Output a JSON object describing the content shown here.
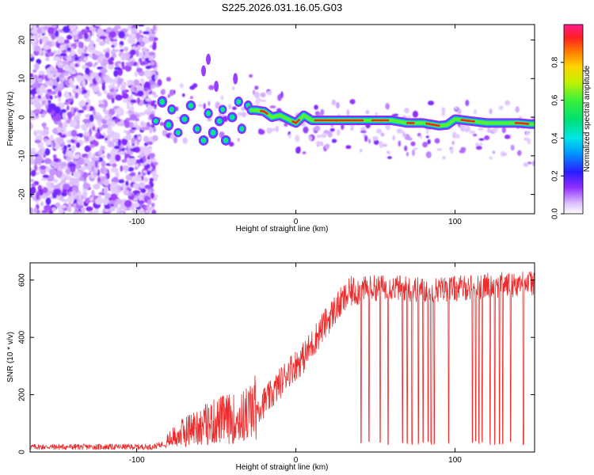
{
  "title": "S225.2026.031.16.05.G03",
  "colors": {
    "snr_line": "#ee2a2a",
    "axis": "#000000"
  },
  "chart_data": [
    {
      "type": "heatmap",
      "xlabel": "Height of straight line (km)",
      "ylabel": "Frequency (Hz)",
      "xlim": [
        -167,
        150
      ],
      "ylim": [
        -25,
        24
      ],
      "xticks": [
        -100,
        0,
        100
      ],
      "yticks": [
        -20,
        -10,
        0,
        10,
        20
      ],
      "ridge": {
        "description_x": [
          -25,
          -20,
          -15,
          -10,
          -5,
          0,
          5,
          10,
          20,
          30,
          40,
          50,
          60,
          70,
          80,
          90,
          95,
          100,
          110,
          120,
          130,
          140,
          148
        ],
        "description_y": [
          1.8,
          1.5,
          0.0,
          0.5,
          -0.5,
          -1.5,
          0.5,
          -0.8,
          -0.8,
          -0.8,
          -0.8,
          -0.8,
          -0.8,
          -1.5,
          -1.5,
          -2.2,
          -2.0,
          -0.5,
          -1.0,
          -1.5,
          -1.5,
          -1.5,
          -1.8
        ]
      },
      "colorbar": {
        "label": "Normalized spectral amplitude",
        "ticks": [
          "0.0",
          "0.2",
          "0.4",
          "0.6",
          "0.8"
        ],
        "range": [
          0,
          1
        ]
      }
    },
    {
      "type": "line",
      "xlabel": "Height of straight line (km)",
      "ylabel": "SNR (10 * v/v)",
      "xlim": [
        -167,
        150
      ],
      "ylim": [
        0,
        660
      ],
      "xticks": [
        -100,
        0,
        100
      ],
      "yticks": [
        0,
        200,
        400,
        600
      ],
      "envelope_x": [
        -167,
        -90,
        -82,
        -75,
        -65,
        -55,
        -45,
        -35,
        -25,
        -15,
        -5,
        5,
        15,
        25,
        35,
        45,
        60,
        80,
        100,
        120,
        150
      ],
      "envelope_mean": [
        18,
        18,
        30,
        55,
        80,
        95,
        110,
        110,
        150,
        200,
        280,
        330,
        420,
        500,
        560,
        570,
        575,
        565,
        570,
        580,
        590
      ],
      "dropout_x": [
        41,
        46,
        53,
        58,
        67,
        70,
        73,
        77,
        80,
        83,
        85,
        87,
        96,
        111,
        113,
        115,
        117,
        122,
        125,
        128,
        130,
        135,
        143
      ]
    }
  ]
}
